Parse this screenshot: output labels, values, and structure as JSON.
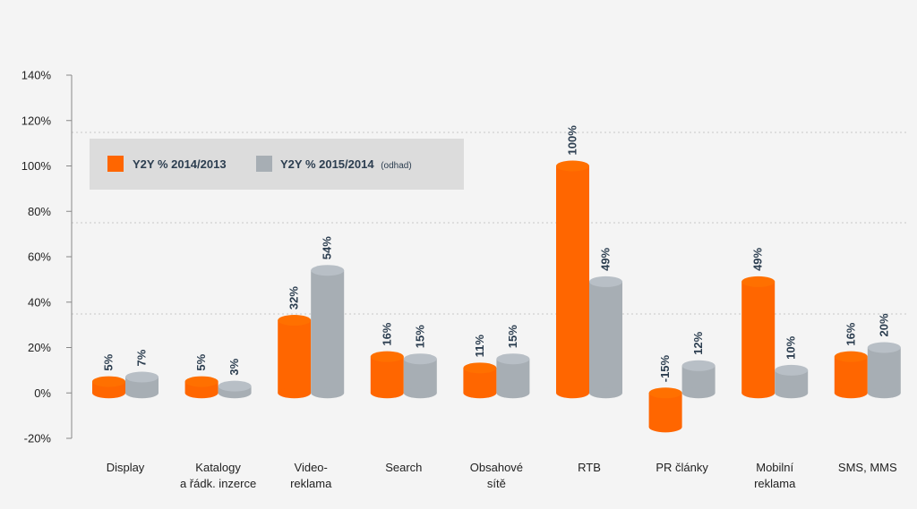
{
  "chart_data": {
    "type": "bar",
    "categories": [
      [
        "Display"
      ],
      [
        "Katalogy",
        "a řádk. inzerce"
      ],
      [
        "Video-",
        "reklama"
      ],
      [
        "Search"
      ],
      [
        "Obsahové",
        "sítě"
      ],
      [
        "RTB"
      ],
      [
        "PR články"
      ],
      [
        "Mobilní",
        "reklama"
      ],
      [
        "SMS, MMS"
      ]
    ],
    "series": [
      {
        "name": "Y2Y % 2014/2013",
        "color": "#ff6600",
        "values": [
          5,
          5,
          32,
          16,
          11,
          100,
          -15,
          49,
          16
        ],
        "labels": [
          "5%",
          "5%",
          "32%",
          "16%",
          "11%",
          "100%",
          "-15%",
          "49%",
          "16%"
        ]
      },
      {
        "name": "Y2Y % 2015/2014",
        "note": "(odhad)",
        "color": "#a7aeb4",
        "values": [
          7,
          3,
          54,
          15,
          15,
          49,
          12,
          10,
          20
        ],
        "labels": [
          "7%",
          "3%",
          "54%",
          "15%",
          "15%",
          "49%",
          "12%",
          "10%",
          "20%"
        ]
      }
    ],
    "yticks": [
      "140%",
      "120%",
      "100%",
      "80%",
      "60%",
      "40%",
      "20%",
      "0%",
      "-20%"
    ],
    "ylim": [
      -20,
      140
    ],
    "grid": "dotted",
    "legend": "top-left"
  }
}
